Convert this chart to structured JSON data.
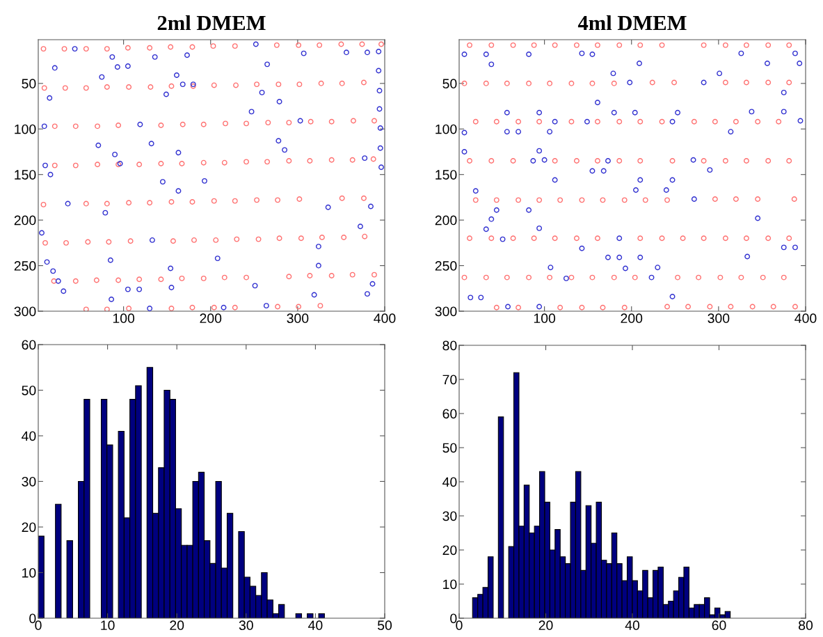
{
  "chart_data": [
    {
      "type": "scatter",
      "title": "2ml DMEM",
      "xlim": [
        2,
        400
      ],
      "ylim": [
        300,
        2
      ],
      "xticks": [
        100,
        200,
        300,
        400
      ],
      "yticks": [
        50,
        100,
        150,
        200,
        250,
        300
      ],
      "marker": "circle",
      "grid": false,
      "series": [
        {
          "color": "#ff7070",
          "x": [
            8,
            32,
            57,
            81,
            105,
            130,
            154,
            179,
            203,
            228,
            276,
            301,
            325,
            350,
            374,
            396,
            9,
            33,
            57,
            81,
            106,
            131,
            155,
            180,
            204,
            229,
            253,
            278,
            302,
            327,
            351,
            376,
            21,
            45,
            70,
            94,
            143,
            168,
            192,
            217,
            241,
            266,
            290,
            315,
            339,
            364,
            388,
            21,
            45,
            70,
            94,
            118,
            143,
            167,
            192,
            216,
            241,
            265,
            290,
            314,
            339,
            363,
            387,
            8,
            57,
            81,
            106,
            130,
            155,
            179,
            204,
            228,
            253,
            277,
            302,
            351,
            376,
            10,
            34,
            59,
            83,
            108,
            157,
            181,
            206,
            230,
            255,
            279,
            304,
            328,
            353,
            377,
            20,
            45,
            69,
            94,
            118,
            143,
            167,
            192,
            216,
            241,
            290,
            314,
            339,
            363,
            388,
            57,
            81,
            106,
            155,
            179,
            204,
            228,
            277,
            301,
            326
          ],
          "values": [
            12,
            12,
            12,
            12,
            11,
            11,
            10,
            10,
            9,
            9,
            8,
            8,
            8,
            7,
            7,
            7,
            55,
            55,
            55,
            54,
            54,
            54,
            53,
            53,
            52,
            52,
            51,
            51,
            51,
            50,
            50,
            49,
            97,
            97,
            97,
            96,
            96,
            95,
            95,
            94,
            94,
            93,
            93,
            92,
            92,
            91,
            91,
            140,
            140,
            139,
            139,
            139,
            138,
            138,
            137,
            137,
            136,
            136,
            135,
            135,
            134,
            134,
            133,
            183,
            182,
            182,
            181,
            181,
            180,
            180,
            179,
            179,
            178,
            178,
            177,
            176,
            176,
            225,
            225,
            224,
            224,
            223,
            223,
            222,
            222,
            221,
            221,
            220,
            220,
            219,
            219,
            218,
            267,
            267,
            266,
            266,
            265,
            265,
            264,
            264,
            263,
            263,
            262,
            261,
            261,
            260,
            260,
            298,
            298,
            297,
            297,
            296,
            296,
            296,
            295,
            295,
            294
          ]
        },
        {
          "color": "#3030d0",
          "x": [
            44,
            87,
            136,
            173,
            21,
            93,
            105,
            75,
            161,
            168,
            180,
            149,
            15,
            9,
            119,
            71,
            132,
            90,
            163,
            96,
            10,
            16,
            145,
            193,
            163,
            36,
            79,
            6,
            133,
            85,
            12,
            19,
            25,
            31,
            154,
            105,
            118,
            155,
            86,
            130,
            252,
            307,
            356,
            380,
            393,
            265,
            393,
            259,
            279,
            394,
            247,
            394,
            303,
            395,
            278,
            285,
            395,
            377,
            396,
            335,
            384,
            372,
            324,
            208,
            324,
            251,
            386,
            319,
            380,
            215,
            264
          ],
          "values": [
            12,
            21,
            21,
            19,
            33,
            32,
            31,
            43,
            41,
            51,
            51,
            62,
            66,
            97,
            95,
            118,
            116,
            128,
            126,
            138,
            140,
            150,
            158,
            157,
            168,
            182,
            192,
            214,
            222,
            244,
            246,
            256,
            267,
            278,
            253,
            276,
            276,
            274,
            287,
            297,
            7,
            17,
            16,
            16,
            15,
            29,
            36,
            60,
            70,
            58,
            81,
            78,
            91,
            99,
            113,
            123,
            121,
            132,
            142,
            186,
            185,
            207,
            229,
            242,
            250,
            272,
            270,
            282,
            281,
            296,
            294
          ]
        }
      ]
    },
    {
      "type": "scatter",
      "title": "4ml DMEM",
      "xlim": [
        2,
        400
      ],
      "ylim": [
        300,
        2
      ],
      "xticks": [
        100,
        200,
        300,
        400
      ],
      "yticks": [
        50,
        100,
        150,
        200,
        250,
        300
      ],
      "marker": "circle",
      "grid": false,
      "series": [
        {
          "color": "#ff7070",
          "x": [
            14,
            39,
            64,
            88,
            112,
            137,
            161,
            186,
            210,
            235,
            283,
            308,
            332,
            357,
            381,
            8,
            33,
            57,
            82,
            106,
            131,
            155,
            180,
            224,
            249,
            308,
            332,
            357,
            381,
            21,
            45,
            70,
            94,
            131,
            161,
            186,
            210,
            235,
            272,
            296,
            320,
            345,
            369,
            14,
            39,
            64,
            112,
            137,
            161,
            186,
            210,
            247,
            283,
            308,
            332,
            357,
            381,
            21,
            45,
            70,
            94,
            118,
            143,
            167,
            192,
            216,
            241,
            296,
            320,
            345,
            387,
            14,
            39,
            64,
            88,
            112,
            137,
            161,
            210,
            235,
            259,
            283,
            308,
            332,
            357,
            381,
            8,
            33,
            57,
            82,
            106,
            131,
            155,
            180,
            204,
            253,
            277,
            302,
            326,
            351,
            375,
            45,
            70,
            118,
            143,
            167,
            192,
            241,
            265,
            290,
            314,
            339,
            363,
            388
          ],
          "values": [
            8,
            8,
            8,
            8,
            8,
            8,
            8,
            8,
            8,
            8,
            8,
            8,
            8,
            8,
            8,
            50,
            50,
            50,
            50,
            50,
            50,
            50,
            50,
            49,
            49,
            49,
            49,
            49,
            49,
            92,
            92,
            92,
            92,
            92,
            92,
            92,
            92,
            92,
            92,
            92,
            92,
            92,
            92,
            135,
            135,
            135,
            135,
            135,
            135,
            135,
            135,
            135,
            135,
            135,
            135,
            135,
            135,
            178,
            178,
            178,
            178,
            178,
            178,
            178,
            178,
            178,
            178,
            177,
            177,
            177,
            177,
            220,
            220,
            220,
            220,
            220,
            220,
            220,
            220,
            220,
            220,
            220,
            220,
            220,
            220,
            220,
            263,
            263,
            263,
            263,
            263,
            263,
            263,
            263,
            263,
            263,
            263,
            263,
            263,
            263,
            263,
            296,
            296,
            296,
            296,
            296,
            296,
            295,
            295,
            295,
            295,
            295,
            295,
            295
          ]
        },
        {
          "color": "#3030d0",
          "x": [
            8,
            33,
            82,
            143,
            155,
            39,
            57,
            94,
            112,
            149,
            8,
            57,
            70,
            106,
            161,
            8,
            94,
            87,
            100,
            155,
            168,
            173,
            112,
            21,
            45,
            82,
            39,
            33,
            94,
            52,
            143,
            173,
            107,
            125,
            15,
            27,
            58,
            94,
            326,
            388,
            209,
            356,
            393,
            179,
            301,
            198,
            283,
            375,
            180,
            204,
            253,
            338,
            375,
            247,
            394,
            314,
            271,
            290,
            210,
            247,
            205,
            240,
            272,
            345,
            186,
            375,
            388,
            186,
            210,
            333,
            193,
            230,
            223,
            247
          ],
          "values": [
            18,
            18,
            18,
            17,
            18,
            29,
            82,
            82,
            92,
            92,
            104,
            103,
            103,
            103,
            71,
            125,
            124,
            135,
            134,
            146,
            146,
            135,
            156,
            168,
            189,
            189,
            199,
            210,
            209,
            221,
            231,
            241,
            252,
            264,
            285,
            285,
            295,
            295,
            17,
            17,
            28,
            28,
            28,
            39,
            39,
            49,
            49,
            60,
            82,
            82,
            82,
            81,
            81,
            92,
            91,
            103,
            134,
            145,
            156,
            156,
            167,
            167,
            177,
            198,
            220,
            230,
            230,
            241,
            241,
            240,
            253,
            252,
            263,
            284
          ]
        }
      ]
    },
    {
      "type": "histogram",
      "xlim": [
        0,
        50
      ],
      "ylim": [
        0,
        60
      ],
      "xticks": [
        0,
        10,
        20,
        30,
        40,
        50
      ],
      "yticks": [
        0,
        10,
        20,
        30,
        40,
        50,
        60
      ],
      "color": "#00007f",
      "grid": false,
      "bins": [
        0,
        0.83,
        1.65,
        2.48,
        3.3,
        4.13,
        4.96,
        5.78,
        6.61,
        7.43,
        8.26,
        9.09,
        9.91,
        10.74,
        11.56,
        12.39,
        13.22,
        14.04,
        14.87,
        15.69,
        16.52,
        17.35,
        18.17,
        19.0,
        19.82,
        20.65,
        21.48,
        22.3,
        23.13,
        23.95,
        24.78,
        25.61,
        26.43,
        27.26,
        28.08,
        28.91,
        29.74,
        30.56,
        31.39,
        32.21,
        33.04,
        33.87,
        34.69,
        35.52,
        36.34,
        37.17,
        38.0,
        38.82,
        39.65,
        40.47,
        41.3
      ],
      "values": [
        18,
        0,
        0,
        25,
        0,
        17,
        0,
        30,
        48,
        0,
        0,
        48,
        38,
        0,
        41,
        22,
        48,
        51,
        0,
        55,
        23,
        33,
        50,
        48,
        24,
        16,
        16,
        30,
        32,
        17,
        12,
        30,
        11,
        23,
        0,
        19,
        9,
        7,
        5,
        10,
        4,
        1,
        3,
        0,
        0,
        1,
        0,
        1,
        0,
        1
      ]
    },
    {
      "type": "histogram",
      "xlim": [
        0,
        80
      ],
      "ylim": [
        0,
        80
      ],
      "xticks": [
        0,
        20,
        40,
        60,
        80
      ],
      "yticks": [
        0,
        10,
        20,
        30,
        40,
        50,
        60,
        70,
        80
      ],
      "color": "#00007f",
      "grid": false,
      "bins": [
        3.1,
        4.29,
        5.48,
        6.67,
        7.86,
        9.05,
        10.24,
        11.43,
        12.62,
        13.81,
        15.0,
        16.19,
        17.38,
        18.57,
        19.76,
        20.95,
        22.14,
        23.33,
        24.52,
        25.71,
        26.9,
        28.09,
        29.28,
        30.47,
        31.66,
        32.85,
        34.04,
        35.23,
        36.42,
        37.61,
        38.8,
        39.99,
        41.18,
        42.37,
        43.56,
        44.75,
        45.94,
        47.13,
        48.32,
        49.51,
        50.7,
        51.89,
        53.08,
        54.27,
        55.46,
        56.65,
        57.84,
        59.03,
        60.22,
        61.41,
        62.6
      ],
      "values": [
        6,
        7,
        9,
        18,
        0,
        59,
        0,
        21,
        72,
        27,
        39,
        25,
        27,
        43,
        34,
        20,
        26,
        18,
        16,
        34,
        43,
        14,
        33,
        22,
        34,
        17,
        16,
        25,
        16,
        11,
        18,
        11,
        8,
        14,
        6,
        14,
        15,
        4,
        5,
        8,
        12,
        15,
        3,
        4,
        4,
        6,
        1,
        3,
        1,
        2
      ]
    }
  ]
}
